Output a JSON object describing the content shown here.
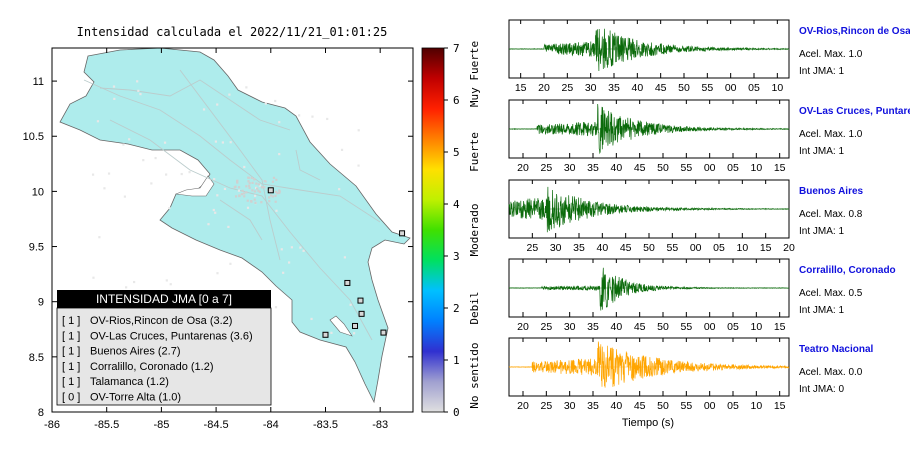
{
  "map": {
    "title": "Intensidad calculada el 2022/11/21_01:01:25",
    "x_ticks": [
      "-86",
      "-85.5",
      "-85",
      "-84.5",
      "-84",
      "-83.5",
      "-83"
    ],
    "y_ticks": [
      "11",
      "10.5",
      "10",
      "9.5",
      "9",
      "8.5",
      "8"
    ],
    "xlim": [
      -86,
      -82.7
    ],
    "ylim": [
      8,
      11.3
    ],
    "land_color": "#aeecec",
    "stations": [
      {
        "lon": -84.0,
        "lat": 10.01
      },
      {
        "lon": -82.8,
        "lat": 9.62
      },
      {
        "lon": -83.3,
        "lat": 9.17
      },
      {
        "lon": -83.18,
        "lat": 9.01
      },
      {
        "lon": -83.17,
        "lat": 8.89
      },
      {
        "lon": -82.97,
        "lat": 8.72
      },
      {
        "lon": -83.23,
        "lat": 8.78
      },
      {
        "lon": -83.5,
        "lat": 8.7
      }
    ]
  },
  "legend": {
    "header": "INTENSIDAD JMA [0 a 7]",
    "items": [
      {
        "code": "[ 1 ]",
        "label": "OV-Rios,Rincon de Osa (3.2)"
      },
      {
        "code": "[ 1 ]",
        "label": "OV-Las Cruces, Puntarenas (3.6)"
      },
      {
        "code": "[ 1 ]",
        "label": "Buenos Aires (2.7)"
      },
      {
        "code": "[ 1 ]",
        "label": "Corralillo, Coronado (1.2)"
      },
      {
        "code": "[ 1 ]",
        "label": "Talamanca (1.2)"
      },
      {
        "code": "[ 0 ]",
        "label": "OV-Torre Alta (1.0)"
      }
    ]
  },
  "colorbar": {
    "ticks": [
      "7",
      "6",
      "5",
      "4",
      "3",
      "2",
      "1",
      "0"
    ],
    "labels": [
      {
        "text": "Muy Fuerte",
        "value": 6.5
      },
      {
        "text": "Fuerte",
        "value": 5.0
      },
      {
        "text": "Moderado",
        "value": 3.5
      },
      {
        "text": "Debil",
        "value": 2.0
      },
      {
        "text": "No sentido",
        "value": 0.7
      }
    ],
    "stops": [
      "#e0e0e0",
      "#a0a0d0",
      "#3030d0",
      "#0080ff",
      "#00c0ff",
      "#00e060",
      "#40e000",
      "#c0f000",
      "#ffe000",
      "#ff8000",
      "#ff2000",
      "#c00000",
      "#500000"
    ]
  },
  "chart_data": {
    "type": "line",
    "xlabel": "Tiempo (s)",
    "series": [
      {
        "name": "OV-Rios,Rincon de Osa",
        "accel_label": "Acel. Max. 1.0",
        "jma_label": "Int JMA: 1",
        "color": "#0a6a0a",
        "x_ticks": [
          "15",
          "20",
          "25",
          "30",
          "35",
          "40",
          "45",
          "50",
          "55",
          "00",
          "05",
          "10"
        ],
        "x_tick_seconds": [
          15,
          20,
          25,
          30,
          35,
          40,
          45,
          50,
          55,
          60,
          65,
          70
        ],
        "xlim": [
          12.5,
          72.5
        ],
        "onset": 20,
        "peak": 31,
        "peak_amp": 1.0,
        "pre_amp": 0.3,
        "decay": 9
      },
      {
        "name": "OV-Las Cruces, Puntarenas",
        "accel_label": "Acel. Max. 1.0",
        "jma_label": "Int JMA: 1",
        "color": "#0a6a0a",
        "x_ticks": [
          "20",
          "25",
          "30",
          "35",
          "40",
          "45",
          "50",
          "55",
          "00",
          "05",
          "10",
          "15"
        ],
        "x_tick_seconds": [
          20,
          25,
          30,
          35,
          40,
          45,
          50,
          55,
          60,
          65,
          70,
          75
        ],
        "xlim": [
          17,
          77
        ],
        "onset": 23,
        "peak": 36,
        "peak_amp": 1.0,
        "pre_amp": 0.3,
        "decay": 8
      },
      {
        "name": "Buenos Aires",
        "accel_label": "Acel. Max. 0.8",
        "jma_label": "Int JMA: 1",
        "color": "#0a6a0a",
        "x_ticks": [
          "25",
          "30",
          "35",
          "40",
          "45",
          "50",
          "55",
          "00",
          "05",
          "10",
          "15",
          "20"
        ],
        "x_tick_seconds": [
          25,
          30,
          35,
          40,
          45,
          50,
          55,
          60,
          65,
          70,
          75,
          80
        ],
        "xlim": [
          20,
          80
        ],
        "onset": 20,
        "peak": 28,
        "peak_amp": 0.95,
        "pre_amp": 0.5,
        "decay": 9
      },
      {
        "name": "Corralillo, Coronado",
        "accel_label": "Acel. Max. 0.5",
        "jma_label": "Int JMA: 1",
        "color": "#0a6a0a",
        "x_ticks": [
          "20",
          "25",
          "30",
          "35",
          "40",
          "45",
          "50",
          "55",
          "00",
          "05",
          "10",
          "15"
        ],
        "x_tick_seconds": [
          20,
          25,
          30,
          35,
          40,
          45,
          50,
          55,
          60,
          65,
          70,
          75
        ],
        "xlim": [
          17,
          77
        ],
        "onset": 24,
        "peak": 36.5,
        "peak_amp": 1.0,
        "pre_amp": 0.1,
        "decay": 5
      },
      {
        "name": "Teatro Nacional",
        "accel_label": "Acel. Max. 0.0",
        "jma_label": "Int JMA: 0",
        "color": "#ffa500",
        "x_ticks": [
          "20",
          "25",
          "30",
          "35",
          "40",
          "45",
          "50",
          "55",
          "00",
          "05",
          "10",
          "15"
        ],
        "x_tick_seconds": [
          20,
          25,
          30,
          35,
          40,
          45,
          50,
          55,
          60,
          65,
          70,
          75
        ],
        "xlim": [
          17,
          77
        ],
        "onset": 22,
        "peak": 36,
        "peak_amp": 1.0,
        "pre_amp": 0.35,
        "decay": 12
      }
    ]
  }
}
